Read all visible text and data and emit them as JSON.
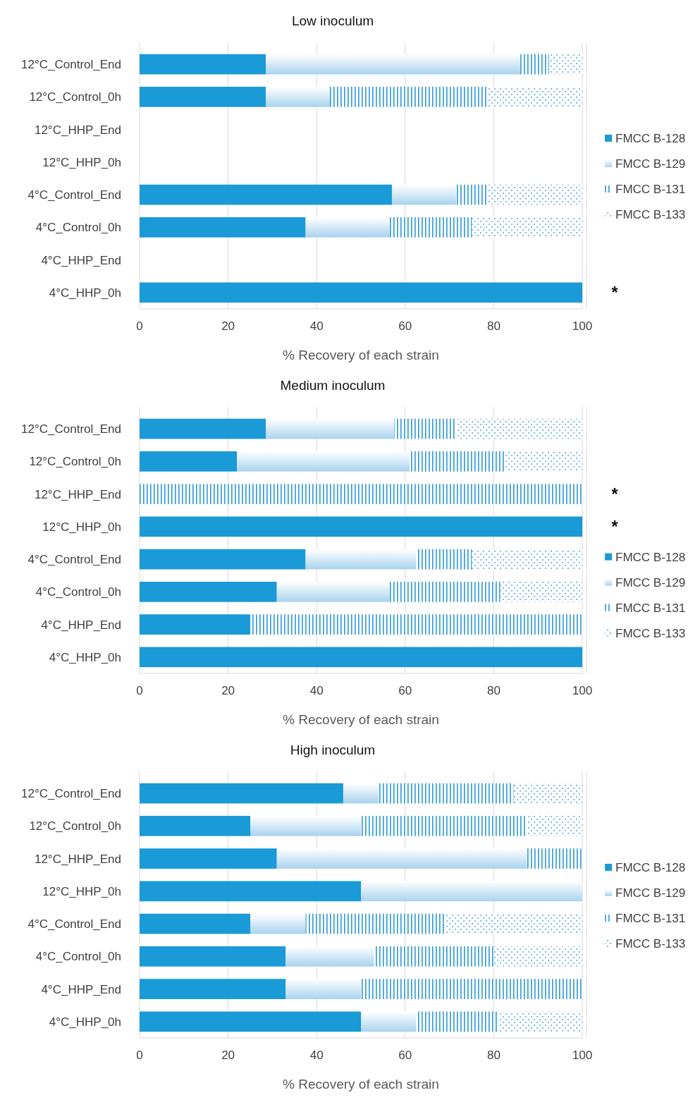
{
  "chart_data": [
    {
      "type": "bar",
      "title": "Low inoculum",
      "xlabel": "% Recovery of each strain",
      "orientation": "horizontal",
      "stacked": true,
      "grid": "x",
      "legend": "right",
      "xlim": [
        0,
        100
      ],
      "xticks": [
        0,
        20,
        40,
        60,
        80,
        100
      ],
      "categories": [
        "12°C_Control_End",
        "12°C_Control_0h",
        "12°C_HHP_End",
        "12°C_HHP_0h",
        "4°C_Control_End",
        "4°C_Control_0h",
        "4°C_HHP_End",
        "4°C_HHP_0h"
      ],
      "series": [
        {
          "name": "FMCC B-128",
          "color": "#1a9ad6",
          "values": [
            28.5,
            28.5,
            0,
            0,
            57,
            37.5,
            0,
            100
          ]
        },
        {
          "name": "FMCC B-129",
          "color": "#a9d3ee",
          "values": [
            57.5,
            14.5,
            0,
            0,
            14.5,
            19,
            0,
            0
          ]
        },
        {
          "name": "FMCC B-131",
          "color": "#2b98d8",
          "values": [
            6.5,
            35.5,
            0,
            0,
            7,
            18.5,
            0,
            0
          ]
        },
        {
          "name": "FMCC B-133",
          "color": "#4aa8e0",
          "values": [
            7.5,
            21.5,
            0,
            0,
            21.5,
            25,
            0,
            0
          ]
        }
      ],
      "annotations": [
        "*"
      ]
    },
    {
      "type": "bar",
      "title": "Medium inoculum",
      "xlabel": "% Recovery of each strain",
      "orientation": "horizontal",
      "stacked": true,
      "grid": "x",
      "legend": "right",
      "xlim": [
        0,
        100
      ],
      "xticks": [
        0,
        20,
        40,
        60,
        80,
        100
      ],
      "categories": [
        "12°C_Control_End",
        "12°C_Control_0h",
        "12°C_HHP_End",
        "12°C_HHP_0h",
        "4°C_Control_End",
        "4°C_Control_0h",
        "4°C_HHP_End",
        "4°C_HHP_0h"
      ],
      "series": [
        {
          "name": "FMCC B-128",
          "color": "#1a9ad6",
          "values": [
            28.5,
            22,
            0,
            100,
            37.5,
            31,
            25,
            100
          ]
        },
        {
          "name": "FMCC B-129",
          "color": "#a9d3ee",
          "values": [
            29,
            39,
            0,
            0,
            25,
            25.5,
            0,
            0
          ]
        },
        {
          "name": "FMCC B-131",
          "color": "#2b98d8",
          "values": [
            14,
            21.5,
            100,
            0,
            12.5,
            25,
            75,
            0
          ]
        },
        {
          "name": "FMCC B-133",
          "color": "#4aa8e0",
          "values": [
            28.5,
            17.5,
            0,
            0,
            25,
            18.5,
            0,
            0
          ]
        }
      ],
      "annotations": [
        "*",
        "*"
      ]
    },
    {
      "type": "bar",
      "title": "High inoculum",
      "xlabel": "% Recovery of each strain",
      "orientation": "horizontal",
      "stacked": true,
      "grid": "x",
      "legend": "right",
      "xlim": [
        0,
        100
      ],
      "xticks": [
        0,
        20,
        40,
        60,
        80,
        100
      ],
      "categories": [
        "12°C_Control_End",
        "12°C_Control_0h",
        "12°C_HHP_End",
        "12°C_HHP_0h",
        "4°C_Control_End",
        "4°C_Control_0h",
        "4°C_HHP_End",
        "4°C_HHP_0h"
      ],
      "series": [
        {
          "name": "FMCC B-128",
          "color": "#1a9ad6",
          "values": [
            46,
            25,
            31,
            50,
            25,
            33,
            33,
            50
          ]
        },
        {
          "name": "FMCC B-129",
          "color": "#a9d3ee",
          "values": [
            8,
            25,
            56.5,
            50,
            12.5,
            20,
            17,
            12.5
          ]
        },
        {
          "name": "FMCC B-131",
          "color": "#2b98d8",
          "values": [
            30.5,
            37.5,
            12.5,
            0,
            31.5,
            27,
            50,
            18.5
          ]
        },
        {
          "name": "FMCC B-133",
          "color": "#4aa8e0",
          "values": [
            15.5,
            12.5,
            0,
            0,
            31,
            20,
            0,
            19
          ]
        }
      ]
    }
  ]
}
